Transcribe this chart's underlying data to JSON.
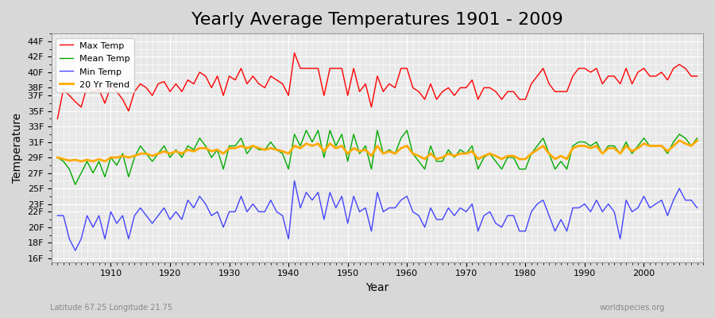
{
  "title": "Yearly Average Temperatures 1901 - 2009",
  "xlabel": "Year",
  "ylabel": "Temperature",
  "subtitle_left": "Latitude 67.25 Longitude 21.75",
  "subtitle_right": "worldspecies.org",
  "years": [
    1901,
    1902,
    1903,
    1904,
    1905,
    1906,
    1907,
    1908,
    1909,
    1910,
    1911,
    1912,
    1913,
    1914,
    1915,
    1916,
    1917,
    1918,
    1919,
    1920,
    1921,
    1922,
    1923,
    1924,
    1925,
    1926,
    1927,
    1928,
    1929,
    1930,
    1931,
    1932,
    1933,
    1934,
    1935,
    1936,
    1937,
    1938,
    1939,
    1940,
    1941,
    1942,
    1943,
    1944,
    1945,
    1946,
    1947,
    1948,
    1949,
    1950,
    1951,
    1952,
    1953,
    1954,
    1955,
    1956,
    1957,
    1958,
    1959,
    1960,
    1961,
    1962,
    1963,
    1964,
    1965,
    1966,
    1967,
    1968,
    1969,
    1970,
    1971,
    1972,
    1973,
    1974,
    1975,
    1976,
    1977,
    1978,
    1979,
    1980,
    1981,
    1982,
    1983,
    1984,
    1985,
    1986,
    1987,
    1988,
    1989,
    1990,
    1991,
    1992,
    1993,
    1994,
    1995,
    1996,
    1997,
    1998,
    1999,
    2000,
    2001,
    2002,
    2003,
    2004,
    2005,
    2006,
    2007,
    2008,
    2009
  ],
  "max_temp": [
    34.0,
    37.8,
    37.0,
    36.2,
    35.5,
    38.2,
    37.4,
    37.8,
    36.0,
    38.2,
    37.5,
    36.5,
    35.0,
    37.5,
    38.5,
    38.0,
    37.0,
    38.5,
    38.8,
    37.5,
    38.5,
    37.5,
    39.0,
    38.5,
    40.0,
    39.5,
    38.0,
    39.5,
    37.0,
    39.5,
    39.0,
    40.5,
    38.5,
    39.5,
    38.5,
    38.0,
    39.5,
    39.0,
    38.5,
    37.0,
    42.5,
    40.5,
    40.5,
    40.5,
    40.5,
    37.0,
    40.5,
    40.5,
    40.5,
    37.0,
    40.5,
    37.5,
    38.5,
    35.5,
    39.5,
    37.5,
    38.5,
    38.0,
    40.5,
    40.5,
    38.0,
    37.5,
    36.5,
    38.5,
    36.5,
    37.5,
    38.0,
    37.0,
    38.0,
    38.0,
    39.0,
    36.5,
    38.0,
    38.0,
    37.5,
    36.5,
    37.5,
    37.5,
    36.5,
    36.5,
    38.5,
    39.5,
    40.5,
    38.5,
    37.5,
    37.5,
    37.5,
    39.5,
    40.5,
    40.5,
    40.0,
    40.5,
    38.5,
    39.5,
    39.5,
    38.5,
    40.5,
    38.5,
    40.0,
    40.5,
    39.5,
    39.5,
    40.0,
    39.0,
    40.5,
    41.0,
    40.5,
    39.5,
    39.5
  ],
  "mean_temp": [
    29.0,
    28.5,
    27.5,
    25.5,
    27.0,
    28.5,
    27.0,
    28.5,
    26.5,
    29.0,
    28.0,
    29.5,
    26.5,
    29.0,
    30.5,
    29.5,
    28.5,
    29.5,
    30.5,
    29.0,
    30.0,
    29.0,
    30.5,
    30.0,
    31.5,
    30.5,
    29.0,
    30.0,
    27.5,
    30.5,
    30.5,
    31.5,
    29.5,
    30.5,
    30.0,
    30.0,
    31.0,
    30.0,
    29.5,
    27.5,
    32.0,
    30.5,
    32.5,
    31.0,
    32.5,
    29.0,
    32.5,
    30.5,
    32.0,
    28.5,
    32.0,
    29.5,
    30.5,
    27.5,
    32.5,
    29.5,
    30.0,
    29.5,
    31.5,
    32.5,
    29.5,
    28.5,
    27.5,
    30.5,
    28.5,
    28.5,
    30.0,
    29.0,
    30.0,
    29.5,
    30.5,
    27.5,
    29.0,
    29.5,
    28.5,
    27.5,
    29.0,
    29.0,
    27.5,
    27.5,
    29.5,
    30.5,
    31.5,
    29.5,
    27.5,
    28.5,
    27.5,
    30.5,
    31.0,
    31.0,
    30.5,
    31.0,
    29.5,
    30.5,
    30.5,
    29.5,
    31.0,
    29.5,
    30.5,
    31.5,
    30.5,
    30.5,
    30.5,
    29.5,
    31.0,
    32.0,
    31.5,
    30.5,
    31.5
  ],
  "min_temp": [
    21.5,
    21.5,
    18.5,
    17.0,
    18.5,
    21.5,
    20.0,
    21.5,
    18.5,
    22.0,
    20.5,
    21.5,
    18.5,
    21.5,
    22.5,
    21.5,
    20.5,
    21.5,
    22.5,
    21.0,
    22.0,
    21.0,
    23.5,
    22.5,
    24.0,
    23.0,
    21.5,
    22.0,
    20.0,
    22.0,
    22.0,
    24.0,
    22.0,
    23.0,
    22.0,
    22.0,
    23.5,
    22.0,
    21.5,
    18.5,
    26.0,
    22.5,
    24.5,
    23.5,
    24.5,
    21.0,
    24.5,
    22.5,
    24.0,
    20.5,
    24.0,
    22.0,
    22.5,
    19.5,
    24.5,
    22.0,
    22.5,
    22.5,
    23.5,
    24.0,
    22.0,
    21.5,
    20.0,
    22.5,
    21.0,
    21.0,
    22.5,
    21.5,
    22.5,
    22.0,
    23.0,
    19.5,
    21.5,
    22.0,
    20.5,
    20.0,
    21.5,
    21.5,
    19.5,
    19.5,
    22.0,
    23.0,
    23.5,
    21.5,
    19.5,
    21.0,
    19.5,
    22.5,
    22.5,
    23.0,
    22.0,
    23.5,
    22.0,
    23.0,
    22.0,
    18.5,
    23.5,
    22.0,
    22.5,
    24.0,
    22.5,
    23.0,
    23.5,
    21.5,
    23.5,
    25.0,
    23.5,
    23.5,
    22.5
  ],
  "trend": [
    29.0,
    28.8,
    28.6,
    28.7,
    28.5,
    28.7,
    28.5,
    28.8,
    28.5,
    29.0,
    29.0,
    29.2,
    29.0,
    29.2,
    29.5,
    29.5,
    29.2,
    29.5,
    29.8,
    29.5,
    29.8,
    29.5,
    30.0,
    29.8,
    30.2,
    30.2,
    29.8,
    30.0,
    29.5,
    30.2,
    30.2,
    30.5,
    30.2,
    30.5,
    30.2,
    30.0,
    30.2,
    30.0,
    29.8,
    29.5,
    30.5,
    30.2,
    30.8,
    30.5,
    30.8,
    29.8,
    30.8,
    30.2,
    30.5,
    29.5,
    30.2,
    29.8,
    30.0,
    29.2,
    30.5,
    29.5,
    29.8,
    29.5,
    30.2,
    30.5,
    29.5,
    29.2,
    28.8,
    29.5,
    28.8,
    29.0,
    29.5,
    29.2,
    29.5,
    29.5,
    29.8,
    28.8,
    29.2,
    29.5,
    29.2,
    28.8,
    29.2,
    29.2,
    28.8,
    28.8,
    29.5,
    30.0,
    30.5,
    29.5,
    28.8,
    29.2,
    28.8,
    30.2,
    30.5,
    30.5,
    30.2,
    30.5,
    29.5,
    30.2,
    30.2,
    29.5,
    30.5,
    29.8,
    30.2,
    30.8,
    30.5,
    30.5,
    30.5,
    29.8,
    30.5,
    31.2,
    30.8,
    30.5,
    31.2
  ],
  "yticks": [
    16,
    18,
    20,
    22,
    23,
    25,
    27,
    29,
    31,
    33,
    35,
    37,
    38,
    40,
    42,
    44
  ],
  "ytick_labels": [
    "16F",
    "18F",
    "20F",
    "22F",
    "23F",
    "25F",
    "27F",
    "29F",
    "31F",
    "33F",
    "35F",
    "37F",
    "38F",
    "40F",
    "42F",
    "44F"
  ],
  "ylim": [
    15.5,
    45.0
  ],
  "xlim": [
    1900,
    2010
  ],
  "background_color": "#e8e8e8",
  "plot_bg_color": "#e8e8e8",
  "grid_color": "#ffffff",
  "max_color": "#ff0000",
  "mean_color": "#00aa00",
  "min_color": "#4444ff",
  "trend_color": "#ffaa00",
  "legend_loc": "upper left",
  "title_fontsize": 16
}
